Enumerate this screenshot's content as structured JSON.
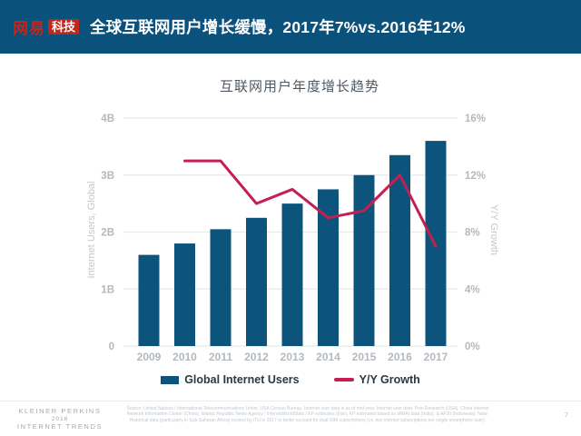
{
  "header": {
    "logo_brand": "网易",
    "logo_badge": "科技",
    "title": "全球互联网用户增长缓慢，2017年7%vs.2016年12%"
  },
  "chart_data": {
    "type": "bar",
    "title": "互联网用户年度增长趋势",
    "categories": [
      "2009",
      "2010",
      "2011",
      "2012",
      "2013",
      "2014",
      "2015",
      "2016",
      "2017"
    ],
    "series": [
      {
        "name": "Global Internet Users",
        "type": "bar",
        "axis": "left",
        "unit": "B",
        "color": "#0d547c",
        "values": [
          1.6,
          1.8,
          2.05,
          2.25,
          2.5,
          2.75,
          3.0,
          3.35,
          3.6
        ]
      },
      {
        "name": "Y/Y Growth",
        "type": "line",
        "axis": "right",
        "unit": "%",
        "color": "#c41f51",
        "values": [
          null,
          13,
          13,
          10,
          11,
          9,
          9.5,
          12,
          7
        ]
      }
    ],
    "left_axis": {
      "label": "Internet Users, Global",
      "min": 0,
      "max": 4,
      "ticks": [
        "0",
        "1B",
        "2B",
        "3B",
        "4B"
      ]
    },
    "right_axis": {
      "label": "Y/Y Growth",
      "min": 0,
      "max": 16,
      "ticks": [
        "0%",
        "4%",
        "8%",
        "12%",
        "16%"
      ]
    },
    "grid": true,
    "legend_position": "bottom"
  },
  "footer": {
    "brand_line1": "KLEINER PERKINS",
    "brand_line2": "2018",
    "brand_line3": "INTERNET TRENDS",
    "source_text": "Source: United Nations / International Telecommunications Union, USA Census Bureau. Internet user data is as of mid-year. Internet user data: Pew Research (USA), China Internet Network Information Center (China), Islamic Republic News Agency / InternetWorldStats / KP estimates (Iran), KP estimates based on IAMAI data (India), & APJII (Indonesia). Note: Historical data (particularly in Sub-Saharan Africa) revised by ITU in 2017 to better account for dual-SIM subscriptions (i.e. two internet subscriptions per single smartphone user).",
    "page_number": "7"
  },
  "colors": {
    "header_bg": "#0a527b",
    "logo_red": "#c1271d",
    "bar": "#0d547c",
    "line": "#c41f51",
    "grid": "#e7e9eb",
    "tick_text": "#b3b9bf",
    "axis_title": "#c3c8cd",
    "chart_title": "#4f5861",
    "legend_text": "#2c3845"
  }
}
